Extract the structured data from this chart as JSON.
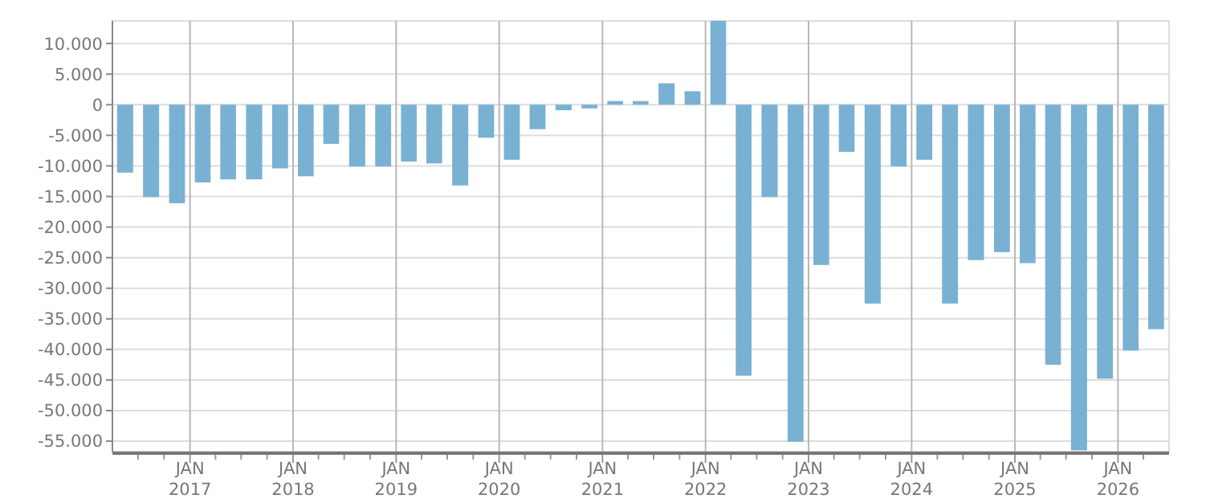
{
  "chart_data": {
    "type": "bar",
    "color": "#79b1d3",
    "x": [
      "2016-05-16",
      "2016-08-16",
      "2016-11-16",
      "2017-02-15",
      "2017-05-16",
      "2017-08-16",
      "2017-11-16",
      "2018-02-15",
      "2018-05-16",
      "2018-08-16",
      "2018-11-16",
      "2019-02-15",
      "2019-05-16",
      "2019-08-16",
      "2019-11-16",
      "2020-02-15",
      "2020-05-16",
      "2020-08-16",
      "2020-11-16",
      "2021-02-15",
      "2021-05-16",
      "2021-08-16",
      "2021-11-16",
      "2022-02-15",
      "2022-05-16",
      "2022-08-16",
      "2022-11-16",
      "2023-02-15",
      "2023-05-16",
      "2023-08-16",
      "2023-11-16",
      "2024-02-15",
      "2024-05-16",
      "2024-08-16",
      "2024-11-16",
      "2025-02-15",
      "2025-05-16",
      "2025-08-16",
      "2025-11-16",
      "2026-02-15",
      "2026-05-16"
    ],
    "values": [
      -11100,
      -15100,
      -16100,
      -12700,
      -12200,
      -12200,
      -10400,
      -11700,
      -6400,
      -10100,
      -10100,
      -9300,
      -9600,
      -13200,
      -5400,
      -9000,
      -4000,
      -900,
      -600,
      600,
      600,
      3500,
      2200,
      13700,
      -44300,
      -15100,
      -55100,
      -26200,
      -7700,
      -32500,
      -10100,
      -9000,
      -32500,
      -25400,
      -24100,
      -25900,
      -42500,
      -56500,
      -44800,
      -40200,
      -36700
    ],
    "xlim": [
      "2016-04-01",
      "2026-07-01"
    ],
    "xticks": [
      {
        "value": "2016-07-01",
        "label": null
      },
      {
        "value": "2016-10-01",
        "label": null
      },
      {
        "value": "2017-01-01",
        "label": "JAN\n2017"
      },
      {
        "value": "2017-04-01",
        "label": null
      },
      {
        "value": "2017-07-01",
        "label": null
      },
      {
        "value": "2017-10-01",
        "label": null
      },
      {
        "value": "2018-01-01",
        "label": "JAN\n2018"
      },
      {
        "value": "2018-04-01",
        "label": null
      },
      {
        "value": "2018-07-01",
        "label": null
      },
      {
        "value": "2018-10-01",
        "label": null
      },
      {
        "value": "2019-01-01",
        "label": "JAN\n2019"
      },
      {
        "value": "2019-04-01",
        "label": null
      },
      {
        "value": "2019-07-01",
        "label": null
      },
      {
        "value": "2019-10-01",
        "label": null
      },
      {
        "value": "2020-01-01",
        "label": "JAN\n2020"
      },
      {
        "value": "2020-04-01",
        "label": null
      },
      {
        "value": "2020-07-01",
        "label": null
      },
      {
        "value": "2020-10-01",
        "label": null
      },
      {
        "value": "2021-01-01",
        "label": "JAN\n2021"
      },
      {
        "value": "2021-04-01",
        "label": null
      },
      {
        "value": "2021-07-01",
        "label": null
      },
      {
        "value": "2021-10-01",
        "label": null
      },
      {
        "value": "2022-01-01",
        "label": "JAN\n2022"
      },
      {
        "value": "2022-04-01",
        "label": null
      },
      {
        "value": "2022-07-01",
        "label": null
      },
      {
        "value": "2022-10-01",
        "label": null
      },
      {
        "value": "2023-01-01",
        "label": "JAN\n2023"
      },
      {
        "value": "2023-04-01",
        "label": null
      },
      {
        "value": "2023-07-01",
        "label": null
      },
      {
        "value": "2023-10-01",
        "label": null
      },
      {
        "value": "2024-01-01",
        "label": "JAN\n2024"
      },
      {
        "value": "2024-04-01",
        "label": null
      },
      {
        "value": "2024-07-01",
        "label": null
      },
      {
        "value": "2024-10-01",
        "label": null
      },
      {
        "value": "2025-01-01",
        "label": "JAN\n2025"
      },
      {
        "value": "2025-04-01",
        "label": null
      },
      {
        "value": "2025-07-01",
        "label": null
      },
      {
        "value": "2025-10-01",
        "label": null
      },
      {
        "value": "2026-01-01",
        "label": "JAN\n2026"
      },
      {
        "value": "2026-04-01",
        "label": null
      }
    ],
    "ylim": [
      -56700,
      13700
    ],
    "yticks": [
      {
        "value": 10000,
        "label": "10.000"
      },
      {
        "value": 5000,
        "label": "5.000"
      },
      0,
      {
        "value": -5000,
        "label": "-5.000"
      },
      {
        "value": -10000,
        "label": "-10.000"
      },
      {
        "value": -15000,
        "label": "-15.000"
      },
      {
        "value": -20000,
        "label": "-20.000"
      },
      {
        "value": -25000,
        "label": "-25.000"
      },
      {
        "value": -30000,
        "label": "-30.000"
      },
      {
        "value": -35000,
        "label": "-35.000"
      },
      {
        "value": -40000,
        "label": "-40.000"
      },
      {
        "value": -45000,
        "label": "-45.000"
      },
      {
        "value": -50000,
        "label": "-50.000"
      },
      {
        "value": -55000,
        "label": "-55.000"
      }
    ],
    "grid": true
  }
}
